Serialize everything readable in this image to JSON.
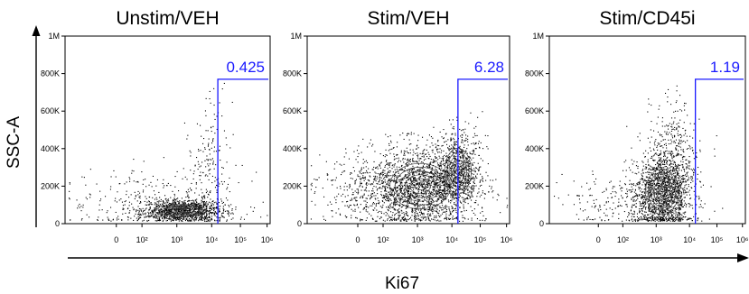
{
  "chart_data": [
    {
      "type": "scatter",
      "title": "Unstim/VEH",
      "xlabel": "Ki67",
      "ylabel": "SSC-A",
      "x_scale": "biexponential",
      "x_ticks": [
        "0",
        "10²",
        "10³",
        "10⁴",
        "10⁵",
        "10⁶"
      ],
      "y_ticks": [
        "0",
        "200K",
        "400K",
        "600K",
        "800K",
        "1M"
      ],
      "ylim": [
        0,
        1000000
      ],
      "gate": {
        "x_threshold": 15000,
        "y_top": 770000,
        "percent": "0.425"
      },
      "populations": [
        {
          "center_x": 1500,
          "center_y": 70000,
          "spread_x": 0.6,
          "spread_y": 30000,
          "count": 1100
        },
        {
          "center_x": 8000,
          "center_y": 300000,
          "spread_x": 0.3,
          "spread_y": 200000,
          "count": 180
        },
        {
          "center_x": 200,
          "center_y": 120000,
          "spread_x": 1.2,
          "spread_y": 90000,
          "count": 300
        }
      ]
    },
    {
      "type": "scatter",
      "title": "Stim/VEH",
      "x_scale": "biexponential",
      "x_ticks": [
        "0",
        "10²",
        "10³",
        "10⁴",
        "10⁵",
        "10⁶"
      ],
      "y_ticks": [
        "0",
        "200K",
        "400K",
        "600K",
        "800K",
        "1M"
      ],
      "ylim": [
        0,
        1000000
      ],
      "gate": {
        "x_threshold": 15000,
        "y_top": 770000,
        "percent": "6.28"
      },
      "populations": [
        {
          "center_x": 1200,
          "center_y": 200000,
          "spread_x": 0.8,
          "spread_y": 110000,
          "count": 1600
        },
        {
          "center_x": 15000,
          "center_y": 280000,
          "spread_x": 0.35,
          "spread_y": 110000,
          "count": 700
        },
        {
          "center_x": 100,
          "center_y": 180000,
          "spread_x": 1.0,
          "spread_y": 90000,
          "count": 500
        }
      ]
    },
    {
      "type": "scatter",
      "title": "Stim/CD45i",
      "x_scale": "biexponential",
      "x_ticks": [
        "0",
        "10²",
        "10³",
        "10⁴",
        "10⁵",
        "10⁶"
      ],
      "y_ticks": [
        "0",
        "200K",
        "400K",
        "600K",
        "800K",
        "1M"
      ],
      "ylim": [
        0,
        1000000
      ],
      "gate": {
        "x_threshold": 15000,
        "y_top": 770000,
        "percent": "1.19"
      },
      "populations": [
        {
          "center_x": 1500,
          "center_y": 170000,
          "spread_x": 0.45,
          "spread_y": 110000,
          "count": 1400
        },
        {
          "center_x": 3000,
          "center_y": 350000,
          "spread_x": 0.35,
          "spread_y": 150000,
          "count": 350
        },
        {
          "center_x": 150,
          "center_y": 110000,
          "spread_x": 1.0,
          "spread_y": 70000,
          "count": 250
        }
      ]
    }
  ],
  "shared_y_label": "SSC-A",
  "shared_x_label": "Ki67",
  "colors": {
    "points": "#000000",
    "gate": "#1a1aff",
    "contour": "#444444"
  }
}
